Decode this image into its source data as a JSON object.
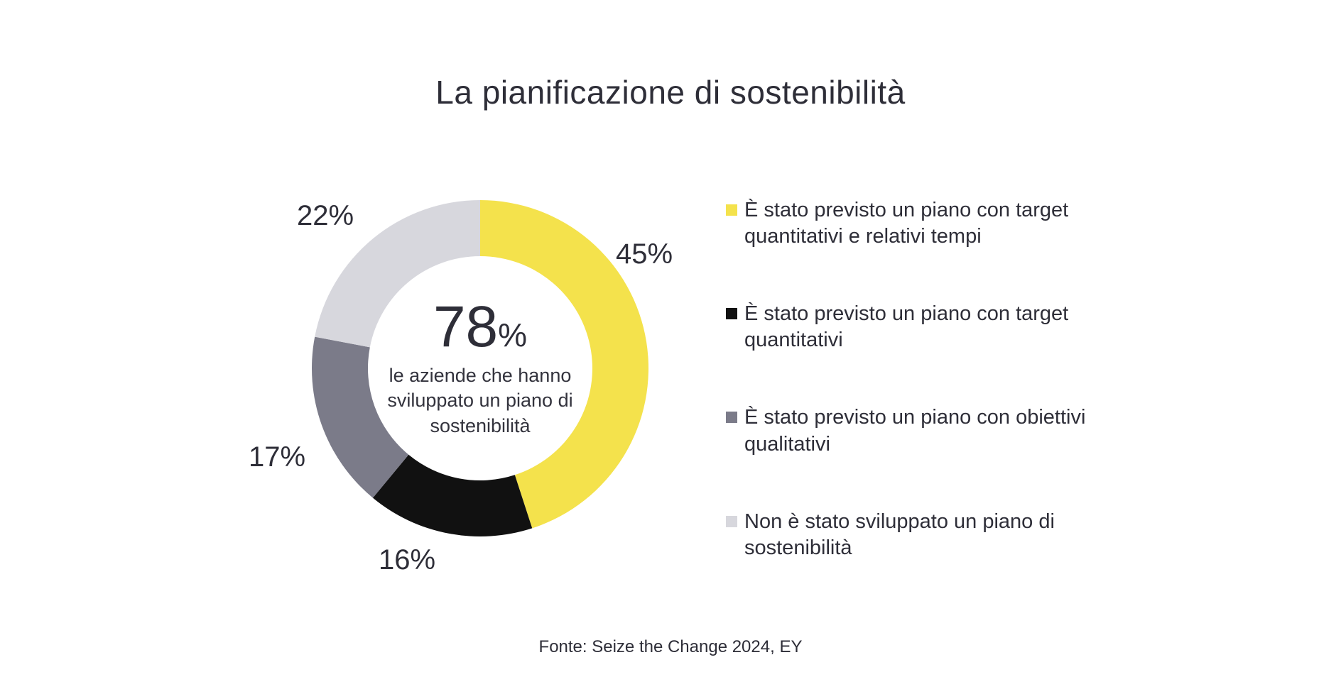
{
  "title": "La pianificazione di sostenibilità",
  "source": "Fonte: Seize the Change 2024, EY",
  "center": {
    "value": "78",
    "percent_sign": "%",
    "caption": "le aziende che hanno sviluppato un piano di sostenibilità"
  },
  "chart_data": {
    "type": "pie",
    "style": "donut",
    "start_angle_deg": -90,
    "direction": "clockwise",
    "title": "La pianificazione di sostenibilità",
    "legend_position": "right",
    "center_label": "78% le aziende che hanno sviluppato un piano di sostenibilità",
    "segments": [
      {
        "label": "È stato previsto un piano con target quantitativi e relativi tempi",
        "value": 45,
        "pct_label": "45%",
        "color": "#f4e24c"
      },
      {
        "label": "È stato previsto un piano con target quantitativi",
        "value": 16,
        "pct_label": "16%",
        "color": "#111111"
      },
      {
        "label": "È stato previsto un piano con obiettivi qualitativi",
        "value": 17,
        "pct_label": "17%",
        "color": "#7b7b89"
      },
      {
        "label": "Non è stato sviluppato un piano di sostenibilità",
        "value": 22,
        "pct_label": "22%",
        "color": "#d7d7dd"
      }
    ]
  }
}
